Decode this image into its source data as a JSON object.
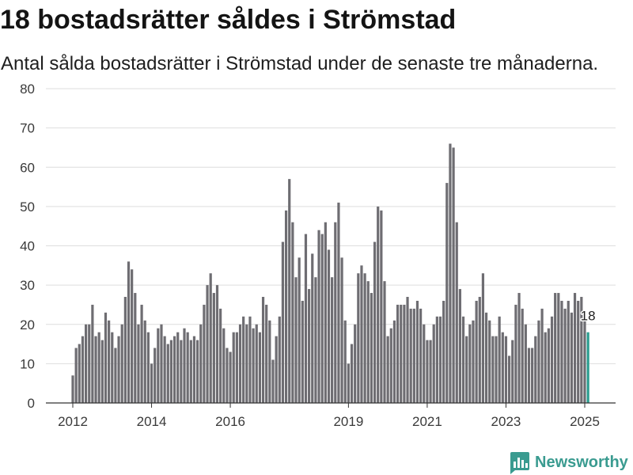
{
  "chart_data": {
    "type": "bar",
    "title": "18 bostadsrätter såldes i Strömstad",
    "subtitle": "Antal sålda bostadsrätter i Strömstad under de senaste tre månaderna.",
    "ylim": [
      0,
      80
    ],
    "yticks": [
      0,
      10,
      20,
      30,
      40,
      50,
      60,
      70,
      80
    ],
    "xticks": [
      {
        "label": "2012",
        "at": "2012-01"
      },
      {
        "label": "2014",
        "at": "2014-01"
      },
      {
        "label": "2016",
        "at": "2016-01"
      },
      {
        "label": "2019",
        "at": "2019-01"
      },
      {
        "label": "2021",
        "at": "2021-01"
      },
      {
        "label": "2023",
        "at": "2023-01"
      },
      {
        "label": "2025",
        "at": "2025-01"
      }
    ],
    "x": [
      "2012-01",
      "2012-02",
      "2012-03",
      "2012-04",
      "2012-05",
      "2012-06",
      "2012-07",
      "2012-08",
      "2012-09",
      "2012-10",
      "2012-11",
      "2012-12",
      "2013-01",
      "2013-02",
      "2013-03",
      "2013-04",
      "2013-05",
      "2013-06",
      "2013-07",
      "2013-08",
      "2013-09",
      "2013-10",
      "2013-11",
      "2013-12",
      "2014-01",
      "2014-02",
      "2014-03",
      "2014-04",
      "2014-05",
      "2014-06",
      "2014-07",
      "2014-08",
      "2014-09",
      "2014-10",
      "2014-11",
      "2014-12",
      "2015-01",
      "2015-02",
      "2015-03",
      "2015-04",
      "2015-05",
      "2015-06",
      "2015-07",
      "2015-08",
      "2015-09",
      "2015-10",
      "2015-11",
      "2015-12",
      "2016-01",
      "2016-02",
      "2016-03",
      "2016-04",
      "2016-05",
      "2016-06",
      "2016-07",
      "2016-08",
      "2016-09",
      "2016-10",
      "2016-11",
      "2016-12",
      "2017-01",
      "2017-02",
      "2017-03",
      "2017-04",
      "2017-05",
      "2017-06",
      "2017-07",
      "2017-08",
      "2017-09",
      "2017-10",
      "2017-11",
      "2017-12",
      "2018-01",
      "2018-02",
      "2018-03",
      "2018-04",
      "2018-05",
      "2018-06",
      "2018-07",
      "2018-08",
      "2018-09",
      "2018-10",
      "2018-11",
      "2018-12",
      "2019-01",
      "2019-02",
      "2019-03",
      "2019-04",
      "2019-05",
      "2019-06",
      "2019-07",
      "2019-08",
      "2019-09",
      "2019-10",
      "2019-11",
      "2019-12",
      "2020-01",
      "2020-02",
      "2020-03",
      "2020-04",
      "2020-05",
      "2020-06",
      "2020-07",
      "2020-08",
      "2020-09",
      "2020-10",
      "2020-11",
      "2020-12",
      "2021-01",
      "2021-02",
      "2021-03",
      "2021-04",
      "2021-05",
      "2021-06",
      "2021-07",
      "2021-08",
      "2021-09",
      "2021-10",
      "2021-11",
      "2021-12",
      "2022-01",
      "2022-02",
      "2022-03",
      "2022-04",
      "2022-05",
      "2022-06",
      "2022-07",
      "2022-08",
      "2022-09",
      "2022-10",
      "2022-11",
      "2022-12",
      "2023-01",
      "2023-02",
      "2023-03",
      "2023-04",
      "2023-05",
      "2023-06",
      "2023-07",
      "2023-08",
      "2023-09",
      "2023-10",
      "2023-11",
      "2023-12",
      "2024-01",
      "2024-02",
      "2024-03",
      "2024-04",
      "2024-05",
      "2024-06",
      "2024-07",
      "2024-08",
      "2024-09",
      "2024-10",
      "2024-11",
      "2024-12",
      "2025-01",
      "2025-02"
    ],
    "values": [
      7,
      14,
      15,
      17,
      20,
      20,
      25,
      17,
      18,
      16,
      23,
      21,
      18,
      14,
      17,
      20,
      27,
      36,
      34,
      28,
      20,
      25,
      21,
      18,
      10,
      14,
      19,
      20,
      17,
      15,
      16,
      17,
      18,
      16,
      19,
      18,
      16,
      17,
      16,
      20,
      25,
      30,
      33,
      28,
      30,
      24,
      19,
      14,
      13,
      18,
      18,
      20,
      22,
      20,
      22,
      19,
      20,
      18,
      27,
      25,
      21,
      11,
      17,
      22,
      41,
      49,
      57,
      46,
      32,
      37,
      26,
      43,
      29,
      38,
      32,
      44,
      43,
      46,
      39,
      32,
      46,
      51,
      37,
      21,
      10,
      15,
      20,
      33,
      35,
      33,
      31,
      28,
      41,
      50,
      49,
      31,
      17,
      19,
      21,
      25,
      25,
      25,
      27,
      24,
      24,
      26,
      24,
      20,
      16,
      16,
      20,
      22,
      22,
      26,
      56,
      66,
      65,
      46,
      29,
      22,
      17,
      20,
      21,
      26,
      27,
      33,
      23,
      21,
      17,
      17,
      22,
      18,
      17,
      12,
      16,
      25,
      28,
      24,
      20,
      14,
      14,
      17,
      21,
      24,
      18,
      19,
      22,
      28,
      28,
      26,
      24,
      26,
      23,
      28,
      26,
      27,
      21,
      18
    ],
    "highlight": {
      "x": "2025-02",
      "label": "18"
    },
    "grid": true
  },
  "colors": {
    "bar": "#6e6d72",
    "highlight": "#2a9d8f",
    "grid": "#dedede",
    "axis": "#333333",
    "brand": "#3a9b90"
  },
  "brand": {
    "name": "Newsworthy",
    "icon": "newsworthy-logo-icon"
  }
}
